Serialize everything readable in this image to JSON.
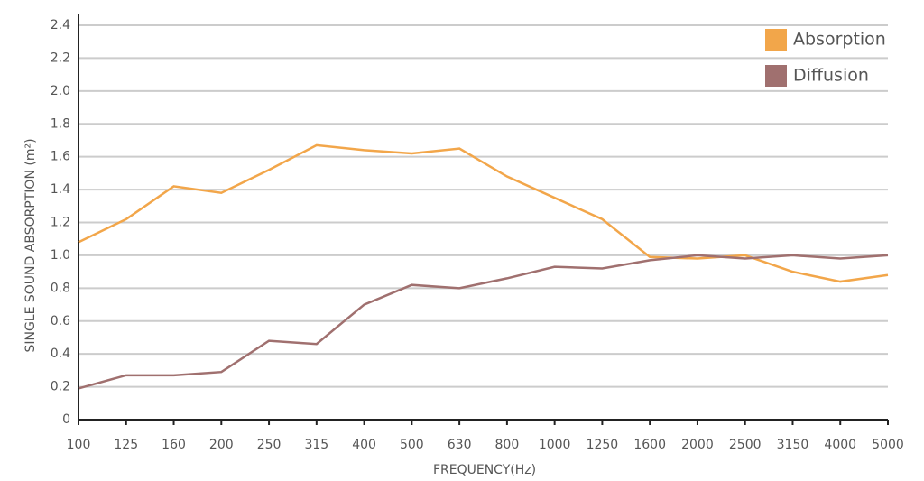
{
  "chart_data": {
    "type": "line",
    "x_label": "FREQUENCY(Hz)",
    "y_label": "SINGLE SOUND ABSORPTION (m²)",
    "categories": [
      "100",
      "125",
      "160",
      "200",
      "250",
      "315",
      "400",
      "500",
      "630",
      "800",
      "1000",
      "1250",
      "1600",
      "2000",
      "2500",
      "3150",
      "4000",
      "5000"
    ],
    "series": [
      {
        "name": "Absorption",
        "color": "#f2a64a",
        "values": [
          1.08,
          1.22,
          1.42,
          1.38,
          1.52,
          1.67,
          1.64,
          1.62,
          1.65,
          1.48,
          1.35,
          1.22,
          0.99,
          0.98,
          1.0,
          0.9,
          0.84,
          0.88
        ]
      },
      {
        "name": "Diffusion",
        "color": "#a0706f",
        "values": [
          0.19,
          0.27,
          0.27,
          0.29,
          0.48,
          0.46,
          0.7,
          0.82,
          0.8,
          0.86,
          0.93,
          0.92,
          0.97,
          1.0,
          0.98,
          1.0,
          0.98,
          1.0
        ]
      }
    ],
    "ylim": [
      0,
      2.4
    ],
    "yticks": [
      0,
      0.2,
      0.4,
      0.6,
      0.8,
      {
        "value": 1.0,
        "label": "1.0"
      },
      1.2,
      1.4,
      1.6,
      1.8,
      {
        "value": 2.0,
        "label": "2.0"
      },
      2.2,
      2.4
    ],
    "grid": true,
    "legend": "top-right"
  }
}
